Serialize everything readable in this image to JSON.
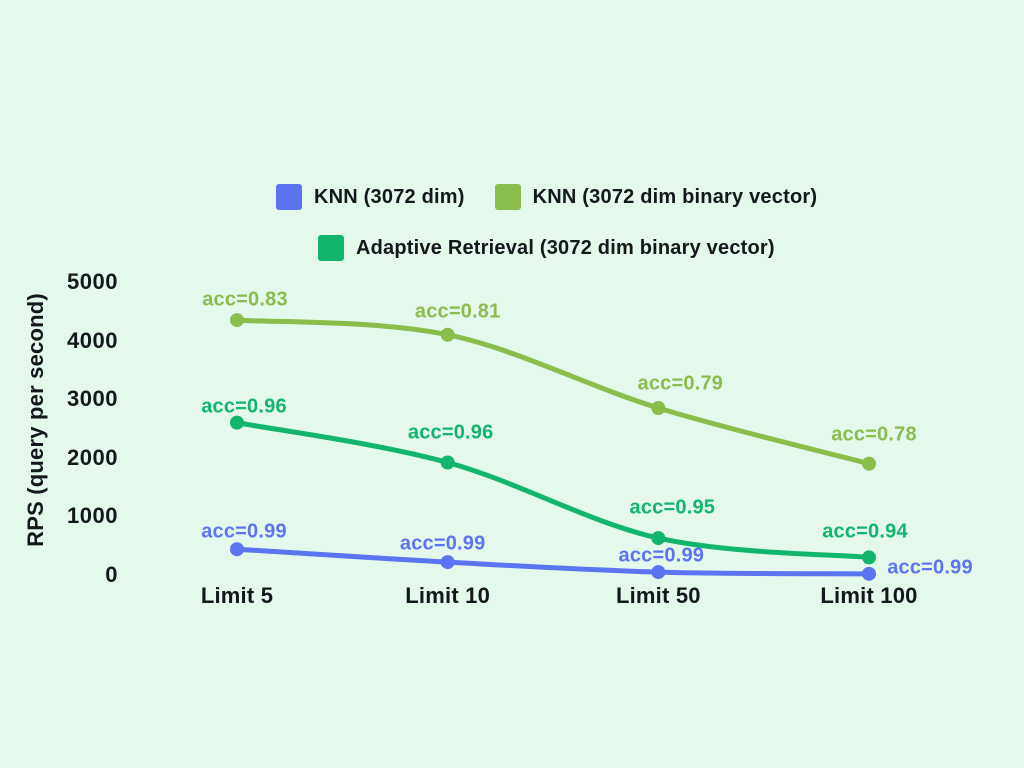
{
  "background": "#E4F8EC",
  "text_color": "#14171C",
  "legend": {
    "rows": [
      [
        {
          "label": "KNN (3072 dim)",
          "color": "#5B74F1"
        },
        {
          "label": "KNN (3072 dim binary vector)",
          "color": "#8ABD4C"
        }
      ],
      [
        {
          "label": "Adaptive Retrieval (3072 dim binary vector)",
          "color": "#12B56D"
        }
      ]
    ]
  },
  "chart_data": {
    "type": "line",
    "title": "",
    "xlabel": "",
    "ylabel": "RPS (query per second)",
    "categories": [
      "Limit 5",
      "Limit 10",
      "Limit 50",
      "Limit 100"
    ],
    "yticks": [
      5000,
      4000,
      3000,
      2000,
      1000,
      0
    ],
    "ylim": [
      0,
      5000
    ],
    "grid": false,
    "legend_position": "top",
    "series": [
      {
        "name": "KNN (3072 dim)",
        "color": "#5B74F1",
        "values": [
          440,
          220,
          50,
          20
        ],
        "annotations": [
          "acc=0.99",
          "acc=0.99",
          "acc=0.99",
          "acc=0.99"
        ],
        "label_offsets": [
          [
            7,
            -17
          ],
          [
            -5,
            -18
          ],
          [
            3,
            -16
          ],
          [
            61,
            -6
          ]
        ]
      },
      {
        "name": "KNN (3072 dim binary vector)",
        "color": "#8ABD4C",
        "values": [
          4350,
          4100,
          2850,
          1900
        ],
        "annotations": [
          "acc=0.83",
          "acc=0.81",
          "acc=0.79",
          "acc=0.78"
        ],
        "label_offsets": [
          [
            8,
            -20
          ],
          [
            10,
            -23
          ],
          [
            22,
            -24
          ],
          [
            5,
            -29
          ]
        ]
      },
      {
        "name": "Adaptive Retrieval (3072 dim binary vector)",
        "color": "#12B56D",
        "values": [
          2600,
          1920,
          630,
          300
        ],
        "annotations": [
          "acc=0.96",
          "acc=0.96",
          "acc=0.95",
          "acc=0.94"
        ],
        "label_offsets": [
          [
            7,
            -16
          ],
          [
            3,
            -29
          ],
          [
            14,
            -30
          ],
          [
            -4,
            -25
          ]
        ]
      }
    ]
  }
}
